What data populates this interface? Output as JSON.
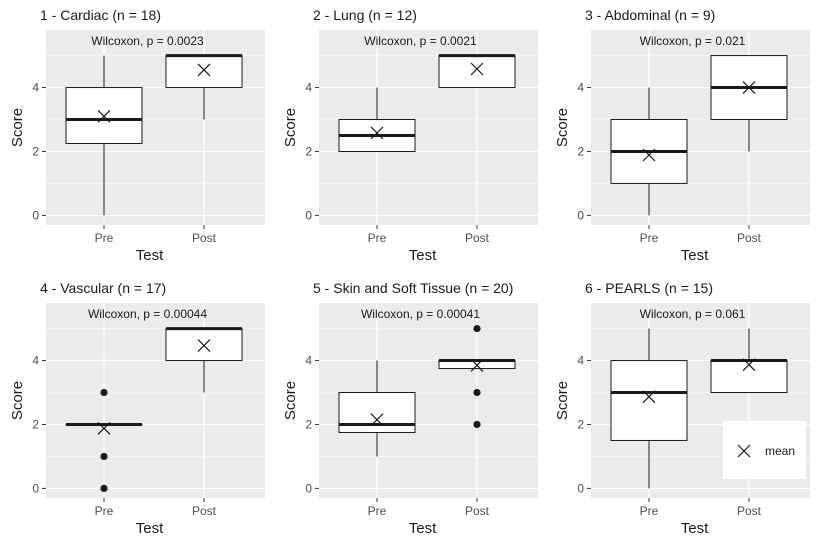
{
  "colors": {
    "panel_bg": "#ebebeb",
    "grid_major": "#ffffff",
    "box_fill": "#ffffff",
    "ink": "#1a1a1a"
  },
  "legend": {
    "label": "mean",
    "position": "bottom-right of panel 6"
  },
  "chart_data": [
    {
      "type": "boxplot",
      "title": "1 - Cardiac (n = 18)",
      "annotation": "Wilcoxon, p = 0.0023",
      "xlabel": "Test",
      "ylabel": "Score",
      "categories": [
        "Pre",
        "Post"
      ],
      "ylim": [
        -0.3,
        5.8
      ],
      "yticks": [
        0,
        2,
        4
      ],
      "boxes": [
        {
          "q1": 2.25,
          "median": 3,
          "q3": 4,
          "whisker_low": 0,
          "whisker_high": 5,
          "mean": 3.1,
          "outliers": []
        },
        {
          "q1": 4,
          "median": 5,
          "q3": 5,
          "whisker_low": 3,
          "whisker_high": 5,
          "mean": 4.55,
          "outliers": []
        }
      ]
    },
    {
      "type": "boxplot",
      "title": "2 - Lung (n = 12)",
      "annotation": "Wilcoxon, p = 0.0021",
      "xlabel": "Test",
      "ylabel": "Score",
      "categories": [
        "Pre",
        "Post"
      ],
      "ylim": [
        -0.3,
        5.8
      ],
      "yticks": [
        0,
        2,
        4
      ],
      "boxes": [
        {
          "q1": 2,
          "median": 2.5,
          "q3": 3,
          "whisker_low": 2,
          "whisker_high": 4,
          "mean": 2.58,
          "outliers": []
        },
        {
          "q1": 4,
          "median": 5,
          "q3": 5,
          "whisker_low": 4,
          "whisker_high": 5,
          "mean": 4.58,
          "outliers": []
        }
      ]
    },
    {
      "type": "boxplot",
      "title": "3 - Abdominal (n = 9)",
      "annotation": "Wilcoxon, p = 0.021",
      "xlabel": "Test",
      "ylabel": "Score",
      "categories": [
        "Pre",
        "Post"
      ],
      "ylim": [
        -0.3,
        5.8
      ],
      "yticks": [
        0,
        2,
        4
      ],
      "boxes": [
        {
          "q1": 1,
          "median": 2,
          "q3": 3,
          "whisker_low": 0,
          "whisker_high": 4,
          "mean": 1.89,
          "outliers": []
        },
        {
          "q1": 3,
          "median": 4,
          "q3": 5,
          "whisker_low": 2,
          "whisker_high": 5,
          "mean": 4,
          "outliers": []
        }
      ]
    },
    {
      "type": "boxplot",
      "title": "4 - Vascular (n = 17)",
      "annotation": "Wilcoxon, p = 0.00044",
      "xlabel": "Test",
      "ylabel": "Score",
      "categories": [
        "Pre",
        "Post"
      ],
      "ylim": [
        -0.3,
        5.8
      ],
      "yticks": [
        0,
        2,
        4
      ],
      "boxes": [
        {
          "q1": 2,
          "median": 2,
          "q3": 2,
          "whisker_low": 2,
          "whisker_high": 2,
          "mean": 1.88,
          "outliers": [
            3,
            1,
            0
          ]
        },
        {
          "q1": 4,
          "median": 5,
          "q3": 5,
          "whisker_low": 3,
          "whisker_high": 5,
          "mean": 4.47,
          "outliers": []
        }
      ]
    },
    {
      "type": "boxplot",
      "title": "5 - Skin and Soft Tissue (n = 20)",
      "annotation": "Wilcoxon, p = 0.00041",
      "xlabel": "Test",
      "ylabel": "Score",
      "categories": [
        "Pre",
        "Post"
      ],
      "ylim": [
        -0.3,
        5.8
      ],
      "yticks": [
        0,
        2,
        4
      ],
      "boxes": [
        {
          "q1": 1.75,
          "median": 2,
          "q3": 3,
          "whisker_low": 1,
          "whisker_high": 4,
          "mean": 2.15,
          "outliers": []
        },
        {
          "q1": 3.75,
          "median": 4,
          "q3": 4,
          "whisker_low": 3.75,
          "whisker_high": 4,
          "mean": 3.85,
          "outliers": [
            5,
            3,
            2
          ]
        }
      ]
    },
    {
      "type": "boxplot",
      "title": "6 - PEARLS (n = 15)",
      "annotation": "Wilcoxon, p = 0.061",
      "xlabel": "Test",
      "ylabel": "Score",
      "categories": [
        "Pre",
        "Post"
      ],
      "ylim": [
        -0.3,
        5.8
      ],
      "yticks": [
        0,
        2,
        4
      ],
      "boxes": [
        {
          "q1": 1.5,
          "median": 3,
          "q3": 4,
          "whisker_low": 0,
          "whisker_high": 5,
          "mean": 2.87,
          "outliers": []
        },
        {
          "q1": 3,
          "median": 4,
          "q3": 4,
          "whisker_low": 3,
          "whisker_high": 5,
          "mean": 3.87,
          "outliers": []
        }
      ],
      "legend": true
    }
  ]
}
